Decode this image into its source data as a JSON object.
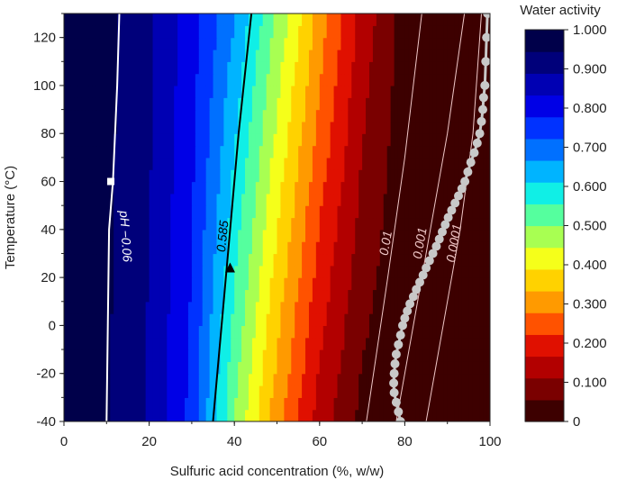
{
  "chart_data": {
    "type": "heatmap",
    "title": "",
    "xlabel": "Sulfuric acid concentration (%, w/w)",
    "ylabel": "Temperature (°C)",
    "xlim": [
      0,
      100
    ],
    "ylim": [
      -40,
      130
    ],
    "x_ticks": [
      0,
      20,
      40,
      60,
      80,
      100
    ],
    "y_ticks": [
      -40,
      -20,
      0,
      20,
      40,
      60,
      80,
      100,
      120
    ],
    "colorbar": {
      "title": "Water activity",
      "range": [
        0,
        1
      ],
      "ticks": [
        "0",
        "0.100",
        "0.200",
        "0.300",
        "0.400",
        "0.500",
        "0.600",
        "0.700",
        "0.800",
        "0.900",
        "1.000"
      ],
      "colors": [
        "#3d0000",
        "#7a0000",
        "#b20000",
        "#e01000",
        "#ff5200",
        "#ff9a00",
        "#ffd200",
        "#f5ff1a",
        "#a8ff52",
        "#55ff9e",
        "#10efe6",
        "#00b4ff",
        "#0070ff",
        "#0032ff",
        "#0000e6",
        "#0000b3",
        "#00007a",
        "#00004a"
      ]
    },
    "field": {
      "description_of_axes": "water activity as a function of concentration (x) and temperature (y)",
      "aw_at_T_minus40": [
        [
          0,
          1.0
        ],
        [
          10,
          0.95
        ],
        [
          20,
          0.88
        ],
        [
          30,
          0.76
        ],
        [
          35,
          0.63
        ],
        [
          40,
          0.5
        ],
        [
          50,
          0.3
        ],
        [
          60,
          0.14
        ],
        [
          70,
          0.04
        ],
        [
          80,
          0.0
        ]
      ],
      "aw_at_T_120": [
        [
          0,
          1.0
        ],
        [
          10,
          0.96
        ],
        [
          20,
          0.9
        ],
        [
          30,
          0.8
        ],
        [
          40,
          0.66
        ],
        [
          45,
          0.57
        ],
        [
          50,
          0.48
        ],
        [
          60,
          0.3
        ],
        [
          70,
          0.14
        ],
        [
          80,
          0.03
        ],
        [
          90,
          0.0
        ]
      ]
    },
    "contours": [
      {
        "label": "−0.06",
        "prefix": "pH",
        "color": "#ffffff",
        "width": 2,
        "points": [
          [
            10,
            -40
          ],
          [
            10.3,
            0
          ],
          [
            10.6,
            40
          ],
          [
            11.5,
            60
          ],
          [
            12.5,
            100
          ],
          [
            13,
            130
          ]
        ]
      },
      {
        "label": "0.585",
        "color": "#000000",
        "width": 2,
        "points": [
          [
            35,
            -40
          ],
          [
            37,
            0
          ],
          [
            39,
            40
          ],
          [
            41,
            80
          ],
          [
            44,
            130
          ]
        ]
      },
      {
        "label": "0.01",
        "color": "#f0c8c8",
        "width": 1,
        "points": [
          [
            71,
            -40
          ],
          [
            76,
            20
          ],
          [
            80,
            70
          ],
          [
            84,
            130
          ]
        ]
      },
      {
        "label": "0.001",
        "color": "#f0c8c8",
        "width": 1,
        "points": [
          [
            78,
            -40
          ],
          [
            82,
            0
          ],
          [
            86,
            40
          ],
          [
            90,
            80
          ],
          [
            94,
            130
          ]
        ]
      },
      {
        "label": "0.0001",
        "color": "#f0c8c8",
        "width": 1,
        "points": [
          [
            85,
            -40
          ],
          [
            89,
            0
          ],
          [
            93,
            40
          ],
          [
            96,
            80
          ],
          [
            98,
            130
          ]
        ]
      }
    ],
    "markers": [
      {
        "shape": "square",
        "color": "#ffffff",
        "x": 11,
        "y": 60
      },
      {
        "shape": "triangle",
        "color": "#000000",
        "x": 39,
        "y": 24
      }
    ],
    "dotted_series": {
      "color": "#c8c8c8",
      "points": [
        [
          79,
          -40
        ],
        [
          78.5,
          -36
        ],
        [
          78,
          -32
        ],
        [
          77.5,
          -28
        ],
        [
          77.4,
          -24
        ],
        [
          77.5,
          -20
        ],
        [
          77.7,
          -16
        ],
        [
          78,
          -12
        ],
        [
          78.5,
          -8
        ],
        [
          79,
          -4
        ],
        [
          79.5,
          0
        ],
        [
          80,
          3
        ],
        [
          80.6,
          6
        ],
        [
          81.2,
          9
        ],
        [
          82,
          12
        ],
        [
          82.7,
          15
        ],
        [
          83.5,
          18
        ],
        [
          84.3,
          21
        ],
        [
          85,
          24
        ],
        [
          85.8,
          27
        ],
        [
          86.6,
          30
        ],
        [
          87.4,
          33
        ],
        [
          88.1,
          36
        ],
        [
          88.8,
          39
        ],
        [
          89.5,
          42
        ],
        [
          90.2,
          45
        ],
        [
          91,
          48
        ],
        [
          91.8,
          51
        ],
        [
          92.6,
          54
        ],
        [
          93.4,
          57
        ],
        [
          94.1,
          60
        ],
        [
          94.8,
          64
        ],
        [
          95.5,
          68
        ],
        [
          96.3,
          72
        ],
        [
          97,
          76
        ],
        [
          97.6,
          80
        ],
        [
          98,
          85
        ],
        [
          98.3,
          90
        ],
        [
          98.5,
          95
        ],
        [
          98.8,
          100
        ],
        [
          99,
          110
        ],
        [
          99.2,
          120
        ],
        [
          99.4,
          130
        ]
      ]
    }
  }
}
